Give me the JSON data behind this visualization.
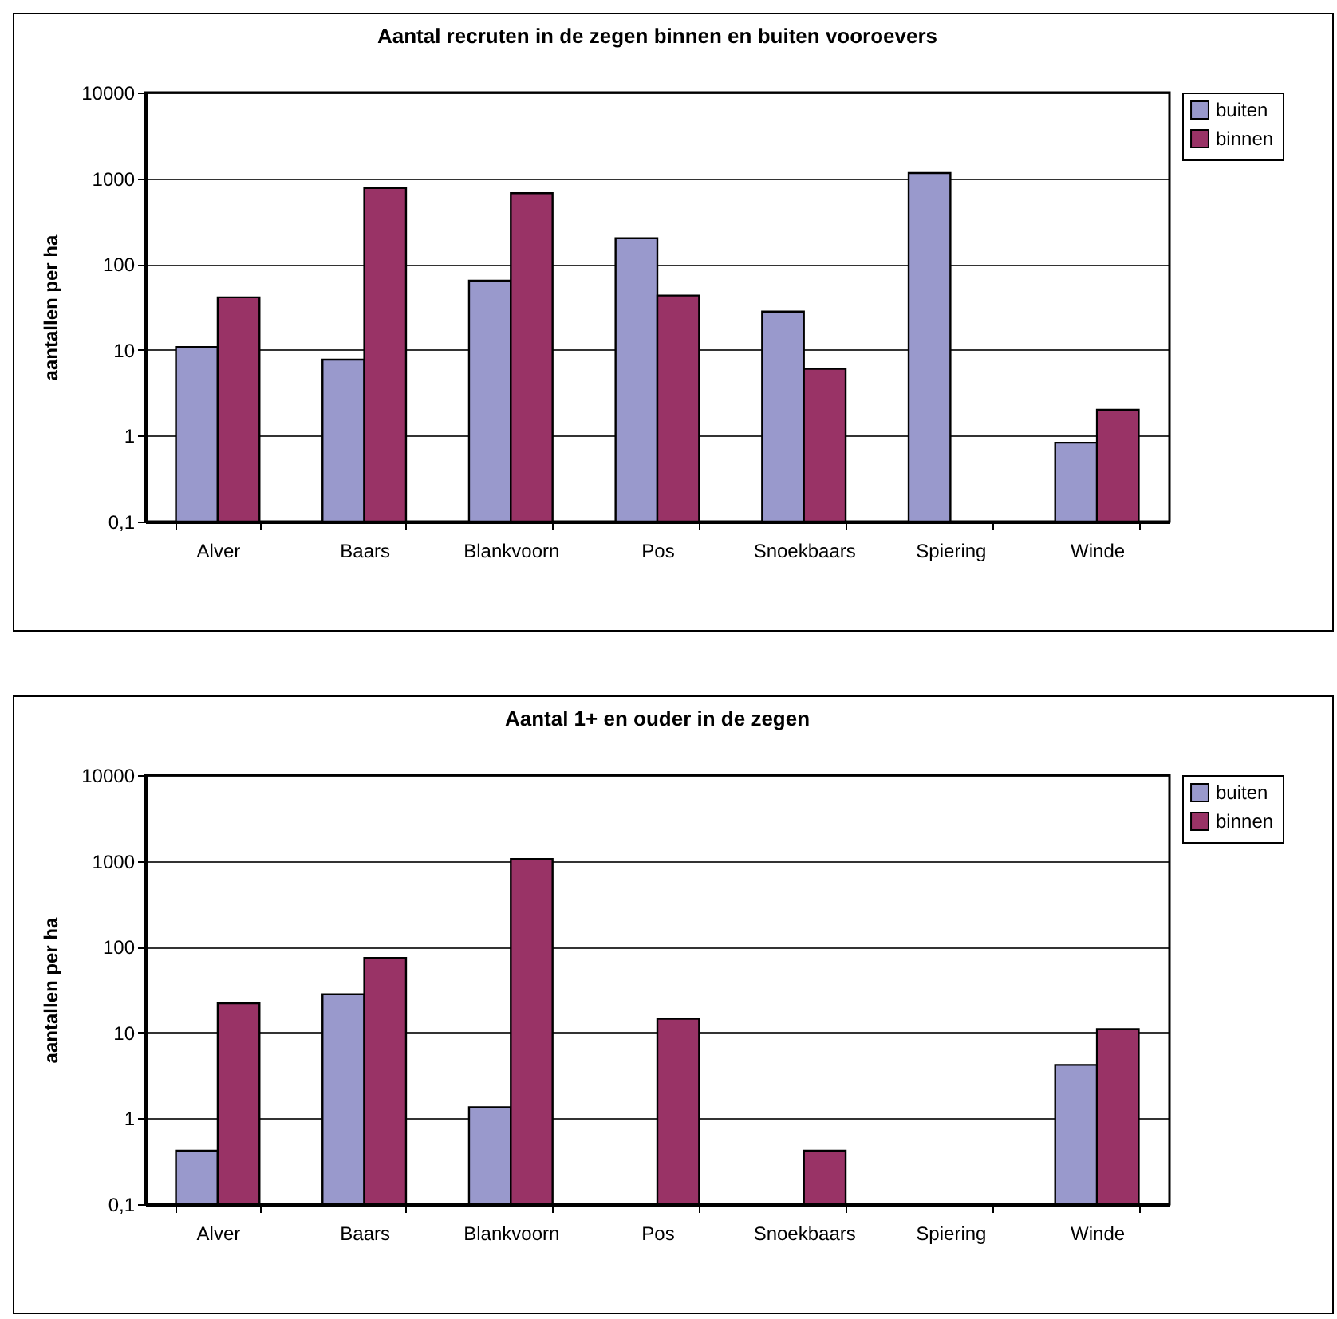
{
  "chart_data": [
    {
      "type": "bar",
      "title": "Aantal recruten in de zegen binnen en buiten vooroevers",
      "ylabel": "aantallen per ha",
      "categories": [
        "Alver",
        "Baars",
        "Blankvoorn",
        "Pos",
        "Snoekbaars",
        "Spiering",
        "Winde"
      ],
      "series": [
        {
          "name": "buiten",
          "color": "#9999cc",
          "values": [
            10.8,
            7.7,
            64,
            200,
            28,
            1150,
            0.83
          ]
        },
        {
          "name": "binnen",
          "color": "#993366",
          "values": [
            41,
            770,
            670,
            43,
            6,
            null,
            2.0
          ]
        }
      ],
      "log": "y",
      "ylim": [
        0.1,
        10000
      ],
      "yticks": [
        {
          "value": 0.1,
          "label": "0,1"
        },
        1,
        10,
        100,
        1000,
        10000
      ],
      "grid": "y",
      "legend": "right"
    },
    {
      "type": "bar",
      "title": "Aantal 1+ en ouder in de zegen",
      "ylabel": "aantallen per ha",
      "categories": [
        "Alver",
        "Baars",
        "Blankvoorn",
        "Pos",
        "Snoekbaars",
        "Spiering",
        "Winde"
      ],
      "series": [
        {
          "name": "buiten",
          "color": "#9999cc",
          "values": [
            0.42,
            28,
            1.35,
            null,
            null,
            null,
            4.2
          ]
        },
        {
          "name": "binnen",
          "color": "#993366",
          "values": [
            22,
            74,
            1050,
            14.5,
            0.42,
            null,
            11
          ]
        }
      ],
      "log": "y",
      "ylim": [
        0.1,
        10000
      ],
      "yticks": [
        {
          "value": 0.1,
          "label": "0,1"
        },
        1,
        10,
        100,
        1000,
        10000
      ],
      "grid": "y",
      "legend": "right"
    }
  ]
}
